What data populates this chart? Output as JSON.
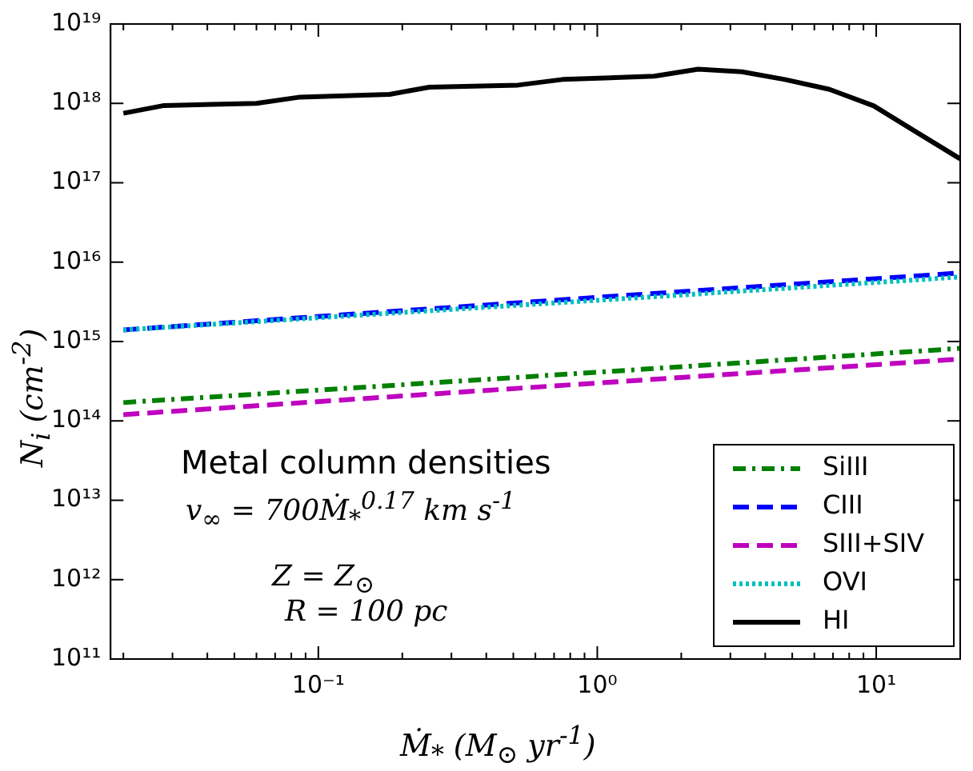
{
  "chart_data": {
    "type": "line",
    "xlabel": "Ṁ$_{*}$ (M$_{⊙}$ yr$^{-1}$)",
    "ylabel": "N$_{i}$ (cm$^{-2}$)",
    "log": "xy",
    "grid": false,
    "legend": "bottom right",
    "marker": "none",
    "xlim": [
      0.018,
      20
    ],
    "ylim": [
      100000000000.0,
      1e+19
    ],
    "xticks": [
      {
        "value": 0.02,
        "label": null
      },
      {
        "value": 0.03,
        "label": null
      },
      {
        "value": 0.04,
        "label": null
      },
      {
        "value": 0.05,
        "label": null
      },
      {
        "value": 0.06,
        "label": null
      },
      {
        "value": 0.07,
        "label": null
      },
      {
        "value": 0.08,
        "label": null
      },
      {
        "value": 0.09,
        "label": null
      },
      {
        "value": 0.1,
        "label": "10⁻¹"
      },
      {
        "value": 0.2,
        "label": null
      },
      {
        "value": 0.3,
        "label": null
      },
      {
        "value": 0.4,
        "label": null
      },
      {
        "value": 0.5,
        "label": null
      },
      {
        "value": 0.6,
        "label": null
      },
      {
        "value": 0.7,
        "label": null
      },
      {
        "value": 0.8,
        "label": null
      },
      {
        "value": 0.9,
        "label": null
      },
      {
        "value": 1,
        "label": "10⁰"
      },
      {
        "value": 2,
        "label": null
      },
      {
        "value": 3,
        "label": null
      },
      {
        "value": 4,
        "label": null
      },
      {
        "value": 5,
        "label": null
      },
      {
        "value": 6,
        "label": null
      },
      {
        "value": 7,
        "label": null
      },
      {
        "value": 8,
        "label": null
      },
      {
        "value": 9,
        "label": null
      },
      {
        "value": 10,
        "label": "10¹"
      },
      {
        "value": 20,
        "label": null
      }
    ],
    "yticks": [
      {
        "value": 100000000000.0,
        "label": "10¹¹"
      },
      {
        "value": 1000000000000.0,
        "label": "10¹²"
      },
      {
        "value": 10000000000000.0,
        "label": "10¹³"
      },
      {
        "value": 100000000000000.0,
        "label": "10¹⁴"
      },
      {
        "value": 1000000000000000.0,
        "label": "10¹⁵"
      },
      {
        "value": 1e+16,
        "label": "10¹⁶"
      },
      {
        "value": 1e+17,
        "label": "10¹⁷"
      },
      {
        "value": 1e+18,
        "label": "10¹⁸"
      },
      {
        "value": 1e+19,
        "label": "10¹⁹"
      }
    ],
    "x": [
      0.02,
      0.028,
      0.06,
      0.086,
      0.18,
      0.25,
      0.52,
      0.75,
      1.6,
      2.3,
      3.3,
      4.7,
      6.8,
      9.8,
      14,
      20
    ],
    "series": [
      {
        "name": "SiIII",
        "color": "#008000",
        "line_style": "dashdot",
        "x": [
          0.02,
          1,
          20
        ],
        "values": [
          170000000000000.0,
          410000000000000.0,
          820000000000000.0
        ]
      },
      {
        "name": "CIII",
        "color": "#0000ff",
        "line_style": "dashed",
        "x": [
          0.02,
          1,
          20
        ],
        "values": [
          1400000000000000.0,
          3600000000000000.0,
          7300000000000000.0
        ]
      },
      {
        "name": "SIII+SIV",
        "color": "#bf00bf",
        "line_style": "dashed",
        "x": [
          0.02,
          1,
          20
        ],
        "values": [
          120000000000000.0,
          300000000000000.0,
          600000000000000.0
        ]
      },
      {
        "name": "OVI",
        "color": "#00bfbf",
        "line_style": "dotted",
        "x": [
          0.02,
          1,
          20
        ],
        "values": [
          1400000000000000.0,
          3300000000000000.0,
          6500000000000000.0
        ]
      },
      {
        "name": "HI",
        "color": "#000000",
        "line_style": "solid",
        "values": [
          7.5e+17,
          9.4e+17,
          1e+18,
          1.2e+18,
          1.3e+18,
          1.6e+18,
          1.7e+18,
          2e+18,
          2.2e+18,
          2.7e+18,
          2.5e+18,
          2e+18,
          1.5e+18,
          9.3e+17,
          4.3e+17,
          2e+17
        ]
      }
    ],
    "annotations": [
      "Metal column densities",
      "v$_{∞}$ = 700Ṁ$_{*}$$^{0.17}$ km s$^{-1}$",
      "Z = Z$_{⊙}$",
      "R = 100 pc"
    ]
  }
}
